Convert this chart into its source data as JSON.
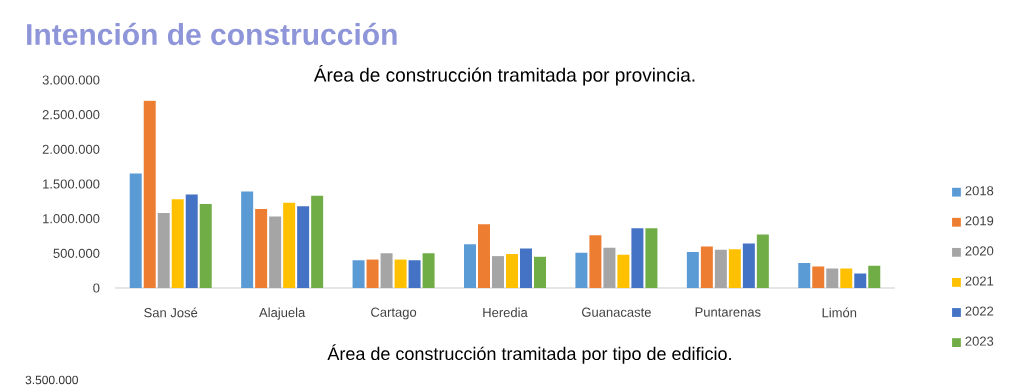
{
  "chart_data": {
    "type": "bar",
    "title": "Intención de construcción",
    "subtitle": "Área de construcción tramitada por provincia.",
    "categories": [
      "San José",
      "Alajuela",
      "Cartago",
      "Heredia",
      "Guanacaste",
      "Puntarenas",
      "Limón"
    ],
    "series": [
      {
        "name": "2018",
        "color": "#5b9bd5",
        "values": [
          1650000,
          1390000,
          400000,
          630000,
          510000,
          520000,
          360000
        ]
      },
      {
        "name": "2019",
        "color": "#ed7d31",
        "values": [
          2700000,
          1140000,
          410000,
          920000,
          760000,
          600000,
          310000
        ]
      },
      {
        "name": "2020",
        "color": "#a5a5a5",
        "values": [
          1080000,
          1030000,
          500000,
          460000,
          580000,
          550000,
          280000
        ]
      },
      {
        "name": "2021",
        "color": "#ffc000",
        "values": [
          1280000,
          1230000,
          410000,
          490000,
          480000,
          560000,
          280000
        ]
      },
      {
        "name": "2022",
        "color": "#4472c4",
        "values": [
          1350000,
          1180000,
          400000,
          570000,
          860000,
          640000,
          210000
        ]
      },
      {
        "name": "2023",
        "color": "#70ad47",
        "values": [
          1210000,
          1330000,
          500000,
          450000,
          860000,
          770000,
          320000
        ]
      }
    ],
    "ylim": [
      0,
      3000000
    ],
    "yticks": [
      {
        "value": 0,
        "label": "0"
      },
      {
        "value": 500000,
        "label": "500.000"
      },
      {
        "value": 1000000,
        "label": "1.000.000"
      },
      {
        "value": 1500000,
        "label": "1.500.000"
      },
      {
        "value": 2000000,
        "label": "2.000.000"
      },
      {
        "value": 2500000,
        "label": "2.500.000"
      },
      {
        "value": 3000000,
        "label": "3.000.000"
      }
    ],
    "legend": "right",
    "annotations": [
      "Área de construcción tramitada por tipo de edificio.",
      "3.500.000"
    ]
  }
}
